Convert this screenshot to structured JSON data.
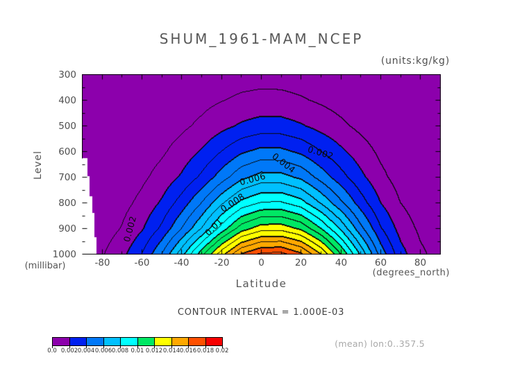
{
  "chart_data": {
    "type": "filled_contour",
    "title": "SHUM_1961-MAM_NCEP",
    "units_label": "(units:kg/kg)",
    "xlabel": "Latitude",
    "x_units": "(degrees_north)",
    "ylabel": "Level",
    "y_units": "(millibar)",
    "xlim": [
      -90,
      90
    ],
    "ylim": [
      1000,
      300
    ],
    "x_ticks": [
      -80,
      -60,
      -40,
      -20,
      0,
      20,
      40,
      60,
      80
    ],
    "y_ticks": [
      300,
      400,
      500,
      600,
      700,
      800,
      900,
      1000
    ],
    "contour_interval": 0.001,
    "contour_interval_label": "CONTOUR INTERVAL = 1.000E-03",
    "mean_label": "(mean) lon:0..357.5",
    "colorbar": {
      "levels": [
        0,
        0.002,
        0.004,
        0.006,
        0.008,
        0.01,
        0.012,
        0.014,
        0.016,
        0.018,
        0.02
      ],
      "labels": [
        "0.0",
        "0.002",
        "0.004",
        "0.006",
        "0.008",
        "0.01",
        "0.012",
        "0.014",
        "0.016",
        "0.018",
        "0.02"
      ],
      "colors": [
        "#8c00ac",
        "#0020f0",
        "#0078f8",
        "#00c0ff",
        "#00ffff",
        "#00e864",
        "#ffff00",
        "#ffa800",
        "#ff5000",
        "#f80000"
      ]
    },
    "contour_labels": [
      {
        "text": "0.002",
        "x": 462,
        "y": 220,
        "rot": 17
      },
      {
        "text": "0.004",
        "x": 409,
        "y": 235,
        "rot": 38
      },
      {
        "text": "0.006",
        "x": 364,
        "y": 258,
        "rot": -15
      },
      {
        "text": "0.008",
        "x": 335,
        "y": 292,
        "rot": -33
      },
      {
        "text": "0.01",
        "x": 308,
        "y": 327,
        "rot": -45
      },
      {
        "text": "0.002",
        "x": 187,
        "y": 330,
        "rot": -75
      }
    ],
    "grid": {
      "lats": [
        -90,
        -80,
        -70,
        -60,
        -50,
        -40,
        -30,
        -20,
        -10,
        0,
        10,
        20,
        30,
        40,
        50,
        60,
        70,
        80,
        90
      ],
      "levels": [
        300,
        400,
        500,
        600,
        700,
        800,
        900,
        1000
      ],
      "values_scale": 0.001,
      "values": [
        [
          0.05,
          0.08,
          0.1,
          0.15,
          0.22,
          0.3,
          0.38,
          0.48,
          0.56,
          0.6,
          0.58,
          0.5,
          0.4,
          0.3,
          0.22,
          0.15,
          0.1,
          0.08,
          0.05
        ],
        [
          0.05,
          0.08,
          0.14,
          0.22,
          0.34,
          0.5,
          0.7,
          0.95,
          1.18,
          1.3,
          1.28,
          1.1,
          0.85,
          0.6,
          0.4,
          0.24,
          0.14,
          0.09,
          0.06
        ],
        [
          0.06,
          0.1,
          0.18,
          0.3,
          0.5,
          0.8,
          1.2,
          1.7,
          2.15,
          2.42,
          2.4,
          2.1,
          1.65,
          1.2,
          0.75,
          0.4,
          0.2,
          0.11,
          0.07
        ],
        [
          0.08,
          0.13,
          0.25,
          0.5,
          0.85,
          1.4,
          2.1,
          3.0,
          3.85,
          4.3,
          4.25,
          3.8,
          3.0,
          2.2,
          1.45,
          0.8,
          0.35,
          0.16,
          0.1
        ],
        [
          0.1,
          0.2,
          0.42,
          0.8,
          1.35,
          2.15,
          3.2,
          4.5,
          5.75,
          6.4,
          6.35,
          5.8,
          4.6,
          3.4,
          2.25,
          1.25,
          0.58,
          0.27,
          0.15
        ],
        [
          0.15,
          0.32,
          0.68,
          1.25,
          2.15,
          3.45,
          5.0,
          6.8,
          8.3,
          9.05,
          9.1,
          8.4,
          6.9,
          5.2,
          3.5,
          2.0,
          1.0,
          0.45,
          0.25
        ],
        [
          0.2,
          0.5,
          1.05,
          1.9,
          3.2,
          5.0,
          7.0,
          9.4,
          11.5,
          12.55,
          12.6,
          11.8,
          10.0,
          7.8,
          5.3,
          3.1,
          1.6,
          0.8,
          0.4
        ],
        [
          0.3,
          0.9,
          1.7,
          3.0,
          5.0,
          7.6,
          10.6,
          13.6,
          16.1,
          17.2,
          17.3,
          16.2,
          14.0,
          11.0,
          7.8,
          4.6,
          2.4,
          1.2,
          0.6
        ]
      ]
    },
    "mask_steps": [
      [
        626,
        695,
        -87.5
      ],
      [
        695,
        775,
        -86.5
      ],
      [
        775,
        840,
        -85
      ],
      [
        840,
        935,
        -84
      ],
      [
        935,
        1001,
        -83
      ]
    ]
  }
}
